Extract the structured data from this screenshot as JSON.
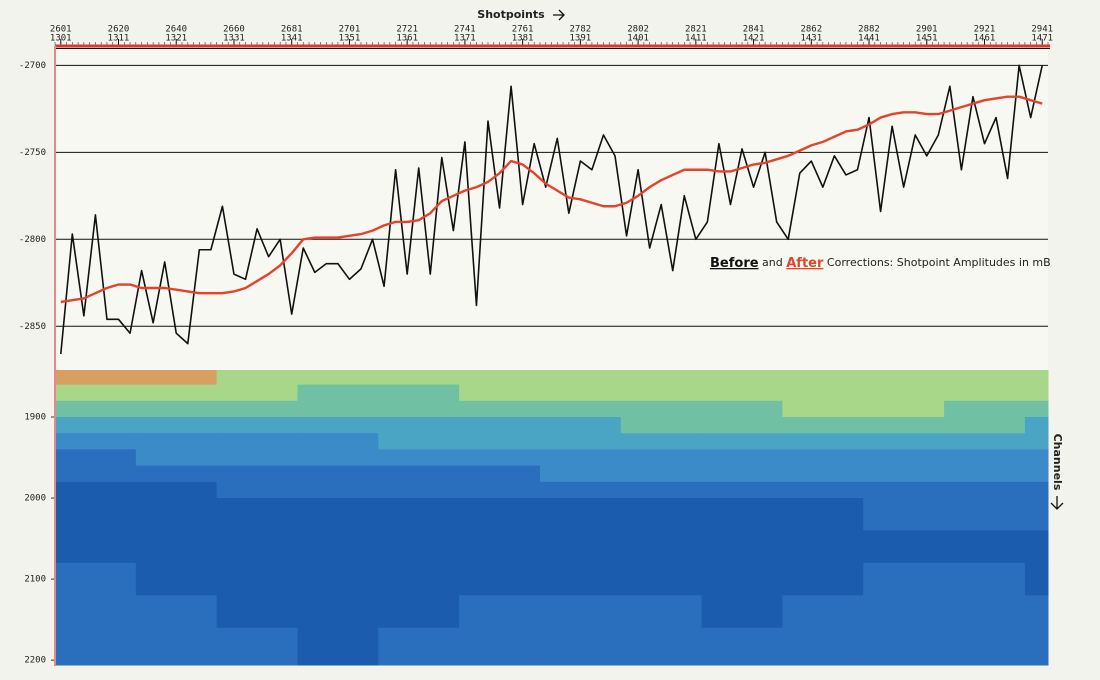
{
  "chart_data": [
    {
      "type": "line",
      "x_label": "Shotpoints",
      "annotation": {
        "joiner": "and",
        "text": "Corrections: Shotpoint Amplitudes in mB"
      },
      "x": [
        1301,
        1303,
        1305,
        1307,
        1309,
        1311,
        1313,
        1315,
        1317,
        1319,
        1321,
        1323,
        1325,
        1327,
        1329,
        1331,
        1333,
        1335,
        1337,
        1339,
        1341,
        1343,
        1345,
        1347,
        1349,
        1351,
        1353,
        1355,
        1357,
        1359,
        1361,
        1363,
        1365,
        1367,
        1369,
        1371,
        1373,
        1375,
        1377,
        1379,
        1381,
        1383,
        1385,
        1387,
        1389,
        1391,
        1393,
        1395,
        1397,
        1399,
        1401,
        1403,
        1405,
        1407,
        1409,
        1411,
        1413,
        1415,
        1417,
        1419,
        1421,
        1423,
        1425,
        1427,
        1429,
        1431,
        1433,
        1435,
        1437,
        1439,
        1441,
        1443,
        1445,
        1447,
        1449,
        1451,
        1453,
        1455,
        1457,
        1459,
        1461,
        1463,
        1465,
        1467,
        1469,
        1471
      ],
      "series": [
        {
          "name": "Before",
          "color": "#111111",
          "values": [
            -2866,
            -2797,
            -2844,
            -2786,
            -2846,
            -2846,
            -2854,
            -2818,
            -2848,
            -2813,
            -2854,
            -2860,
            -2806,
            -2806,
            -2781,
            -2820,
            -2823,
            -2794,
            -2810,
            -2800,
            -2843,
            -2805,
            -2819,
            -2814,
            -2814,
            -2823,
            -2817,
            -2800,
            -2827,
            -2760,
            -2820,
            -2759,
            -2820,
            -2753,
            -2795,
            -2744,
            -2838,
            -2732,
            -2782,
            -2712,
            -2780,
            -2745,
            -2770,
            -2742,
            -2785,
            -2755,
            -2760,
            -2740,
            -2752,
            -2798,
            -2760,
            -2805,
            -2780,
            -2818,
            -2775,
            -2800,
            -2790,
            -2745,
            -2780,
            -2748,
            -2770,
            -2750,
            -2790,
            -2800,
            -2762,
            -2755,
            -2770,
            -2752,
            -2763,
            -2760,
            -2730,
            -2784,
            -2735,
            -2770,
            -2740,
            -2752,
            -2740,
            -2712,
            -2760,
            -2718,
            -2745,
            -2730,
            -2765,
            -2700,
            -2730,
            -2700
          ]
        },
        {
          "name": "After",
          "color": "#e2432a",
          "values": [
            -2836,
            -2835,
            -2834,
            -2831,
            -2828,
            -2826,
            -2826,
            -2828,
            -2828,
            -2828,
            -2829,
            -2830,
            -2831,
            -2831,
            -2831,
            -2830,
            -2828,
            -2824,
            -2820,
            -2815,
            -2808,
            -2800,
            -2799,
            -2799,
            -2799,
            -2798,
            -2797,
            -2795,
            -2792,
            -2790,
            -2790,
            -2789,
            -2785,
            -2778,
            -2775,
            -2772,
            -2770,
            -2767,
            -2762,
            -2755,
            -2757,
            -2762,
            -2768,
            -2772,
            -2776,
            -2777,
            -2779,
            -2781,
            -2781,
            -2779,
            -2775,
            -2770,
            -2766,
            -2763,
            -2760,
            -2760,
            -2760,
            -2761,
            -2761,
            -2759,
            -2757,
            -2756,
            -2754,
            -2752,
            -2749,
            -2746,
            -2744,
            -2741,
            -2738,
            -2737,
            -2734,
            -2730,
            -2728,
            -2727,
            -2727,
            -2728,
            -2728,
            -2726,
            -2724,
            -2722,
            -2720,
            -2719,
            -2718,
            -2718,
            -2720,
            -2722
          ]
        }
      ],
      "xlim": [
        1300,
        1472
      ],
      "xticks": [
        1301,
        1311,
        1321,
        1331,
        1341,
        1351,
        1361,
        1371,
        1381,
        1391,
        1401,
        1411,
        1421,
        1431,
        1441,
        1451,
        1461,
        1471
      ],
      "x2ticks": [
        2601,
        2620,
        2640,
        2660,
        2681,
        2701,
        2721,
        2741,
        2761,
        2782,
        2802,
        2821,
        2841,
        2862,
        2882,
        2901,
        2921,
        2941
      ],
      "x2color": "#d93a2b",
      "ylim": [
        -2874,
        -2690
      ],
      "yticks": [
        -2700,
        -2750,
        -2800,
        -2850
      ],
      "grid": true
    },
    {
      "type": "heatmap",
      "y_label": "Channels",
      "xbins": [
        1300,
        1314,
        1328,
        1342,
        1356,
        1370,
        1384,
        1398,
        1412,
        1426,
        1440,
        1454,
        1468,
        1472
      ],
      "ybins": [
        1842,
        1860,
        1880,
        1900,
        1920,
        1940,
        1960,
        1980,
        2000,
        2040,
        2080,
        2120,
        2160,
        2206
      ],
      "ylim": [
        1842,
        2206
      ],
      "yticks": [
        1900,
        2000,
        2100,
        2200
      ],
      "colors": [
        "#1b5cae",
        "#2a6fbd",
        "#3c8bc9",
        "#4aa4c3",
        "#70c0a4",
        "#a9d78a",
        "#d8a060"
      ],
      "values": [
        [
          6,
          6,
          5,
          5,
          5,
          5,
          5,
          5,
          5,
          5,
          5,
          5,
          5
        ],
        [
          5,
          5,
          5,
          4,
          4,
          5,
          5,
          5,
          5,
          5,
          5,
          5,
          5
        ],
        [
          4,
          4,
          4,
          4,
          4,
          4,
          4,
          4,
          4,
          5,
          5,
          4,
          4
        ],
        [
          3,
          3,
          3,
          3,
          3,
          3,
          3,
          4,
          4,
          4,
          4,
          4,
          3
        ],
        [
          2,
          2,
          2,
          2,
          3,
          3,
          3,
          3,
          3,
          3,
          3,
          3,
          3
        ],
        [
          1,
          2,
          2,
          2,
          2,
          2,
          2,
          2,
          2,
          2,
          2,
          2,
          2
        ],
        [
          1,
          1,
          1,
          1,
          1,
          1,
          2,
          2,
          2,
          2,
          2,
          2,
          2
        ],
        [
          0,
          0,
          1,
          1,
          1,
          1,
          1,
          1,
          1,
          1,
          1,
          1,
          1
        ],
        [
          0,
          0,
          0,
          0,
          0,
          0,
          0,
          0,
          0,
          0,
          1,
          1,
          1
        ],
        [
          0,
          0,
          0,
          0,
          0,
          0,
          0,
          0,
          0,
          0,
          0,
          0,
          0
        ],
        [
          1,
          0,
          0,
          0,
          0,
          0,
          0,
          0,
          0,
          0,
          1,
          1,
          0
        ],
        [
          1,
          1,
          0,
          0,
          0,
          1,
          1,
          1,
          0,
          1,
          1,
          1,
          1
        ],
        [
          1,
          1,
          1,
          0,
          1,
          1,
          1,
          1,
          1,
          1,
          1,
          1,
          1
        ]
      ]
    }
  ]
}
